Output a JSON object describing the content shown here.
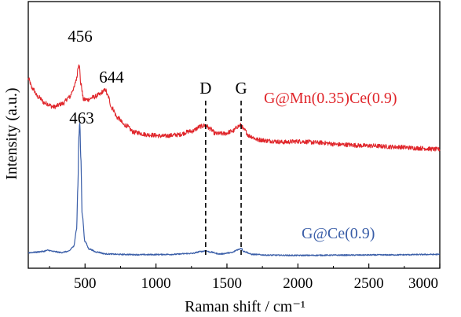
{
  "chart_data": {
    "type": "line",
    "xlabel": "Raman shift / cm⁻¹",
    "ylabel": "Intensity (a.u.)",
    "xlim": [
      100,
      3000
    ],
    "ylim": [
      0,
      1
    ],
    "x_ticks": [
      500,
      1000,
      1500,
      2000,
      2500,
      3000
    ],
    "x_tick_labels": [
      "500",
      "1000",
      "1500",
      "2000",
      "2500",
      "3000"
    ],
    "y_ticks_labeled": false,
    "grid": false,
    "series": [
      {
        "name": "G@Mn(0.35)Ce(0.9)",
        "color": "#e0262b",
        "noise": 0.009,
        "x": [
          100,
          130,
          170,
          220,
          280,
          340,
          390,
          420,
          440,
          452,
          456,
          460,
          470,
          490,
          520,
          560,
          600,
          630,
          644,
          660,
          690,
          730,
          780,
          850,
          950,
          1050,
          1150,
          1250,
          1320,
          1350,
          1380,
          1420,
          1480,
          1540,
          1580,
          1600,
          1620,
          1660,
          1720,
          1800,
          1900,
          2000,
          2150,
          2300,
          2500,
          2700,
          2850,
          3000
        ],
        "values": [
          0.74,
          0.7,
          0.665,
          0.64,
          0.625,
          0.638,
          0.665,
          0.7,
          0.74,
          0.79,
          0.805,
          0.79,
          0.72,
          0.655,
          0.655,
          0.665,
          0.675,
          0.69,
          0.695,
          0.67,
          0.62,
          0.58,
          0.55,
          0.52,
          0.51,
          0.505,
          0.51,
          0.525,
          0.545,
          0.55,
          0.535,
          0.515,
          0.515,
          0.525,
          0.545,
          0.55,
          0.53,
          0.505,
          0.49,
          0.485,
          0.48,
          0.483,
          0.478,
          0.47,
          0.465,
          0.46,
          0.455,
          0.45
        ]
      },
      {
        "name": "G@Ce(0.9)",
        "color": "#3a5ea8",
        "noise": 0.0025,
        "x": [
          100,
          150,
          200,
          240,
          280,
          330,
          380,
          420,
          440,
          450,
          456,
          463,
          470,
          480,
          500,
          530,
          580,
          650,
          750,
          900,
          1100,
          1250,
          1320,
          1350,
          1380,
          1450,
          1530,
          1580,
          1600,
          1620,
          1680,
          1800,
          2000,
          2300,
          2600,
          3000
        ],
        "values": [
          0.025,
          0.027,
          0.03,
          0.035,
          0.03,
          0.026,
          0.03,
          0.05,
          0.12,
          0.3,
          0.5,
          0.56,
          0.42,
          0.18,
          0.07,
          0.04,
          0.028,
          0.02,
          0.018,
          0.017,
          0.018,
          0.022,
          0.03,
          0.033,
          0.028,
          0.02,
          0.025,
          0.038,
          0.043,
          0.03,
          0.018,
          0.015,
          0.014,
          0.015,
          0.016,
          0.018
        ]
      }
    ],
    "vlines": [
      {
        "x": 1350,
        "label": "D"
      },
      {
        "x": 1600,
        "label": "G"
      }
    ],
    "peak_annotations": [
      {
        "text": "456",
        "x": 456,
        "series": 0
      },
      {
        "text": "644",
        "x": 644,
        "series": 0
      },
      {
        "text": "463",
        "x": 463,
        "series": 1
      }
    ],
    "legend": [
      {
        "text": "G@Mn(0.35)Ce(0.9)",
        "color": "#e0262b",
        "placement": "right, beside upper curve"
      },
      {
        "text": "G@Ce(0.9)",
        "color": "#3a5ea8",
        "placement": "right, above lower curve"
      }
    ]
  }
}
